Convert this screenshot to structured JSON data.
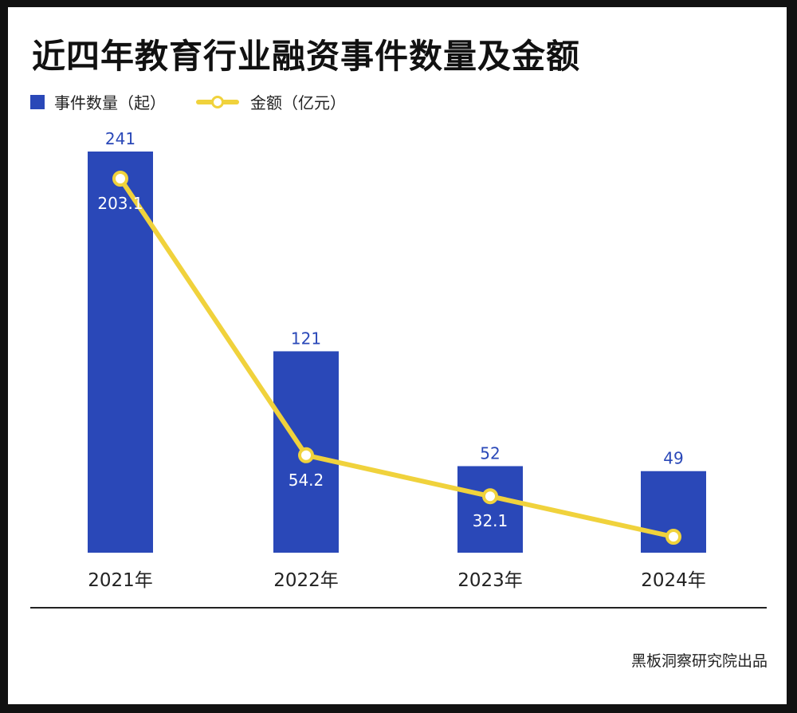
{
  "title": "近四年教育行业融资事件数量及金额",
  "legend": {
    "bar_label": "事件数量（起）",
    "line_label": "金额（亿元）"
  },
  "source": "黑板洞察研究院出品",
  "colors": {
    "bar": "#2a48b8",
    "bar_label": "#2a48b8",
    "line": "#f0d23c",
    "line_label": "#ffffff"
  },
  "chart_data": {
    "type": "bar",
    "categories": [
      "2021年",
      "2022年",
      "2023年",
      "2024年"
    ],
    "series": [
      {
        "name": "事件数量（起）",
        "type": "bar",
        "values": [
          241,
          121,
          52,
          49
        ]
      },
      {
        "name": "金额（亿元）",
        "type": "line",
        "values": [
          203.1,
          54.2,
          32.1,
          10.3
        ]
      }
    ],
    "grid": false,
    "legend_position": "top-left"
  }
}
